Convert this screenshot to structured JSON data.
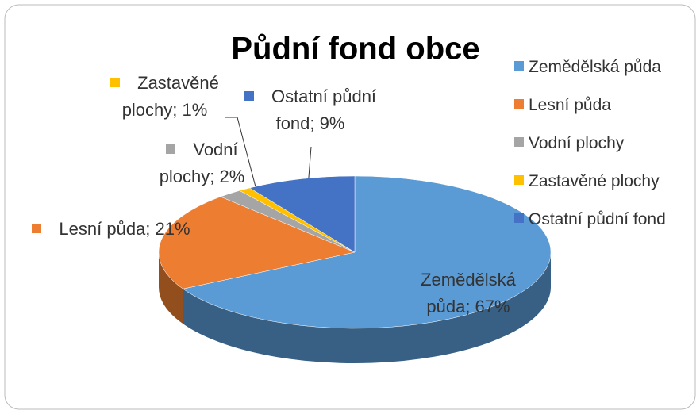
{
  "chart_data": {
    "type": "pie",
    "title": "Půdní fond obce",
    "categories": [
      "Zemědělská půda",
      "Lesní půda",
      "Vodní plochy",
      "Zastavěné plochy",
      "Ostatní půdní fond"
    ],
    "values": [
      67,
      21,
      2,
      1,
      9
    ],
    "value_labels": [
      "Zemědělská půda; 67%",
      "Lesní půda; 21%",
      "Vodní plochy; 2%",
      "Zastavěné plochy; 1%",
      "Ostatní půdní fond; 9%"
    ],
    "colors": [
      "#5B9BD5",
      "#ED7D31",
      "#A5A5A5",
      "#FFC000",
      "#4472C4"
    ],
    "legend": "right",
    "three_d": true
  }
}
